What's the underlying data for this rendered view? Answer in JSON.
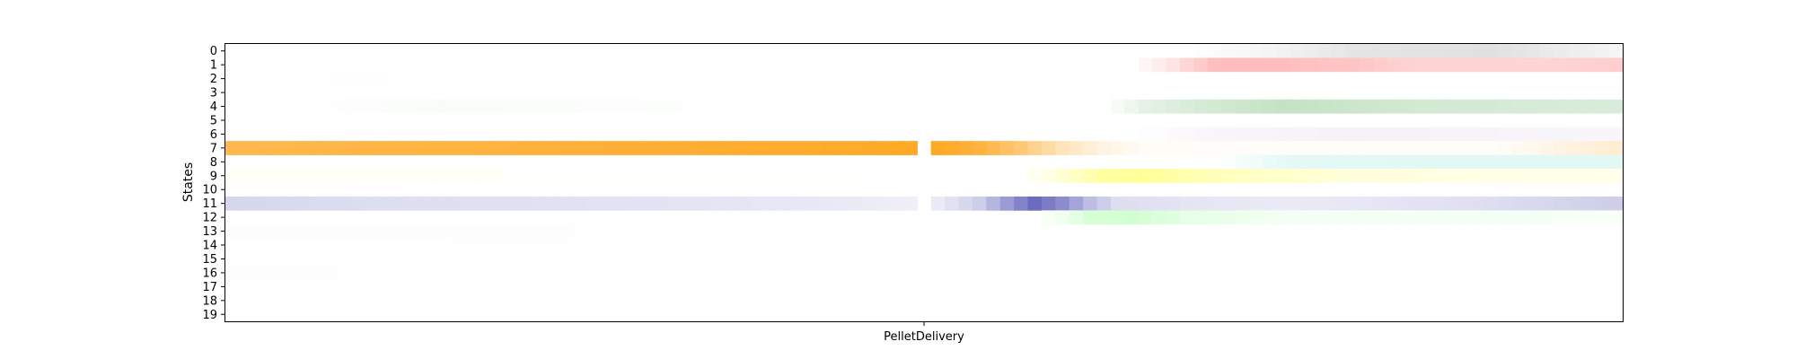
{
  "chart_data": {
    "type": "heatmap",
    "title": "",
    "xlabel": "",
    "ylabel": "States",
    "xticks": [
      "PelletDelivery"
    ],
    "yticks": [
      "0",
      "1",
      "2",
      "3",
      "4",
      "5",
      "6",
      "7",
      "8",
      "9",
      "10",
      "11",
      "12",
      "13",
      "14",
      "15",
      "16",
      "17",
      "18",
      "19"
    ],
    "grid": false,
    "legend": "none",
    "segment_bins": 50,
    "gap_bins": 1,
    "state_colors": [
      "#a9a9a9",
      "#ff6f6f",
      "#ffd9ec",
      "#b1b1b1",
      "#7fbf7f",
      "#f3f3f3",
      "#e6d8ef",
      "#ffa41b",
      "#a8ece3",
      "#ffff55",
      "#ececec",
      "#5a5ab8",
      "#99ff99",
      "#e0f6ef",
      "#efefef",
      "#f2f2f2",
      "#e8e8f0",
      "#f5f5f5",
      "#f7f7f7",
      "#f8f8f8"
    ],
    "series": [
      {
        "state": 0,
        "pre": [
          [
            0,
            0.0
          ],
          [
            49,
            0.0
          ]
        ],
        "post": [
          [
            0,
            0.0
          ],
          [
            18,
            0.0
          ],
          [
            25,
            0.15
          ],
          [
            30,
            0.3
          ],
          [
            40,
            0.35
          ],
          [
            46,
            0.2
          ],
          [
            49,
            0.12
          ]
        ]
      },
      {
        "state": 1,
        "pre": [
          [
            0,
            0.0
          ],
          [
            49,
            0.0
          ]
        ],
        "post": [
          [
            0,
            0.0
          ],
          [
            14,
            0.0
          ],
          [
            17,
            0.2
          ],
          [
            20,
            0.45
          ],
          [
            25,
            0.45
          ],
          [
            30,
            0.4
          ],
          [
            35,
            0.3
          ],
          [
            45,
            0.3
          ],
          [
            49,
            0.35
          ]
        ]
      },
      {
        "state": 2,
        "pre": [
          [
            0,
            0.0
          ],
          [
            8,
            0.05
          ],
          [
            15,
            0.03
          ],
          [
            49,
            0.0
          ]
        ],
        "post": [
          [
            0,
            0.0
          ],
          [
            49,
            0.0
          ]
        ]
      },
      {
        "state": 3,
        "pre": [
          [
            0,
            0.0
          ],
          [
            49,
            0.0
          ]
        ],
        "post": [
          [
            0,
            0.0
          ],
          [
            49,
            0.0
          ]
        ]
      },
      {
        "state": 4,
        "pre": [
          [
            0,
            0.0
          ],
          [
            15,
            0.04
          ],
          [
            49,
            0.0
          ]
        ],
        "post": [
          [
            0,
            0.0
          ],
          [
            12,
            0.0
          ],
          [
            15,
            0.2
          ],
          [
            20,
            0.35
          ],
          [
            25,
            0.45
          ],
          [
            35,
            0.35
          ],
          [
            45,
            0.3
          ],
          [
            49,
            0.3
          ]
        ]
      },
      {
        "state": 5,
        "pre": [
          [
            0,
            0.0
          ],
          [
            49,
            0.0
          ]
        ],
        "post": [
          [
            0,
            0.0
          ],
          [
            49,
            0.0
          ]
        ]
      },
      {
        "state": 6,
        "pre": [
          [
            0,
            0.0
          ],
          [
            49,
            0.0
          ]
        ],
        "post": [
          [
            0,
            0.0
          ],
          [
            14,
            0.0
          ],
          [
            20,
            0.25
          ],
          [
            30,
            0.35
          ],
          [
            40,
            0.3
          ],
          [
            49,
            0.25
          ]
        ]
      },
      {
        "state": 7,
        "pre": [
          [
            0,
            0.78
          ],
          [
            20,
            0.85
          ],
          [
            49,
            0.95
          ]
        ],
        "post": [
          [
            0,
            0.95
          ],
          [
            3,
            0.85
          ],
          [
            6,
            0.6
          ],
          [
            9,
            0.3
          ],
          [
            12,
            0.12
          ],
          [
            15,
            0.03
          ],
          [
            40,
            0.02
          ],
          [
            49,
            0.2
          ]
        ]
      },
      {
        "state": 8,
        "pre": [
          [
            0,
            0.0
          ],
          [
            49,
            0.0
          ]
        ],
        "post": [
          [
            0,
            0.0
          ],
          [
            20,
            0.0
          ],
          [
            25,
            0.3
          ],
          [
            35,
            0.35
          ],
          [
            49,
            0.35
          ]
        ]
      },
      {
        "state": 9,
        "pre": [
          [
            0,
            0.05
          ],
          [
            25,
            0.02
          ],
          [
            49,
            0.0
          ]
        ],
        "post": [
          [
            0,
            0.0
          ],
          [
            6,
            0.0
          ],
          [
            8,
            0.15
          ],
          [
            10,
            0.35
          ],
          [
            12,
            0.55
          ],
          [
            15,
            0.6
          ],
          [
            20,
            0.4
          ],
          [
            30,
            0.2
          ],
          [
            40,
            0.15
          ],
          [
            49,
            0.12
          ]
        ]
      },
      {
        "state": 10,
        "pre": [
          [
            0,
            0.0
          ],
          [
            49,
            0.0
          ]
        ],
        "post": [
          [
            0,
            0.0
          ],
          [
            49,
            0.0
          ]
        ]
      },
      {
        "state": 11,
        "pre": [
          [
            0,
            0.25
          ],
          [
            10,
            0.2
          ],
          [
            25,
            0.18
          ],
          [
            40,
            0.15
          ],
          [
            49,
            0.1
          ]
        ],
        "post": [
          [
            0,
            0.12
          ],
          [
            3,
            0.3
          ],
          [
            5,
            0.6
          ],
          [
            7,
            0.9
          ],
          [
            9,
            0.7
          ],
          [
            11,
            0.4
          ],
          [
            13,
            0.2
          ],
          [
            25,
            0.12
          ],
          [
            40,
            0.2
          ],
          [
            49,
            0.3
          ]
        ]
      },
      {
        "state": 12,
        "pre": [
          [
            0,
            0.0
          ],
          [
            49,
            0.0
          ]
        ],
        "post": [
          [
            0,
            0.0
          ],
          [
            7,
            0.0
          ],
          [
            9,
            0.15
          ],
          [
            11,
            0.4
          ],
          [
            14,
            0.45
          ],
          [
            18,
            0.25
          ],
          [
            25,
            0.1
          ],
          [
            49,
            0.08
          ]
        ]
      },
      {
        "state": 13,
        "pre": [
          [
            0,
            0.1
          ],
          [
            25,
            0.08
          ],
          [
            49,
            0.04
          ]
        ],
        "post": [
          [
            0,
            0.0
          ],
          [
            49,
            0.0
          ]
        ]
      },
      {
        "state": 14,
        "pre": [
          [
            0,
            0.0
          ],
          [
            20,
            0.04
          ],
          [
            49,
            0.0
          ]
        ],
        "post": [
          [
            0,
            0.0
          ],
          [
            49,
            0.0
          ]
        ]
      },
      {
        "state": 15,
        "pre": [
          [
            0,
            0.04
          ],
          [
            49,
            0.0
          ]
        ],
        "post": [
          [
            0,
            0.0
          ],
          [
            49,
            0.0
          ]
        ]
      },
      {
        "state": 16,
        "pre": [
          [
            0,
            0.08
          ],
          [
            10,
            0.06
          ],
          [
            25,
            0.03
          ],
          [
            49,
            0.0
          ]
        ],
        "post": [
          [
            0,
            0.0
          ],
          [
            49,
            0.0
          ]
        ]
      },
      {
        "state": 17,
        "pre": [
          [
            0,
            0.02
          ],
          [
            49,
            0.0
          ]
        ],
        "post": [
          [
            0,
            0.0
          ],
          [
            49,
            0.0
          ]
        ]
      },
      {
        "state": 18,
        "pre": [
          [
            0,
            0.0
          ],
          [
            49,
            0.0
          ]
        ],
        "post": [
          [
            0,
            0.0
          ],
          [
            49,
            0.0
          ]
        ]
      },
      {
        "state": 19,
        "pre": [
          [
            0,
            0.0
          ],
          [
            49,
            0.0
          ]
        ],
        "post": [
          [
            0,
            0.0
          ],
          [
            49,
            0.0
          ]
        ]
      }
    ]
  }
}
